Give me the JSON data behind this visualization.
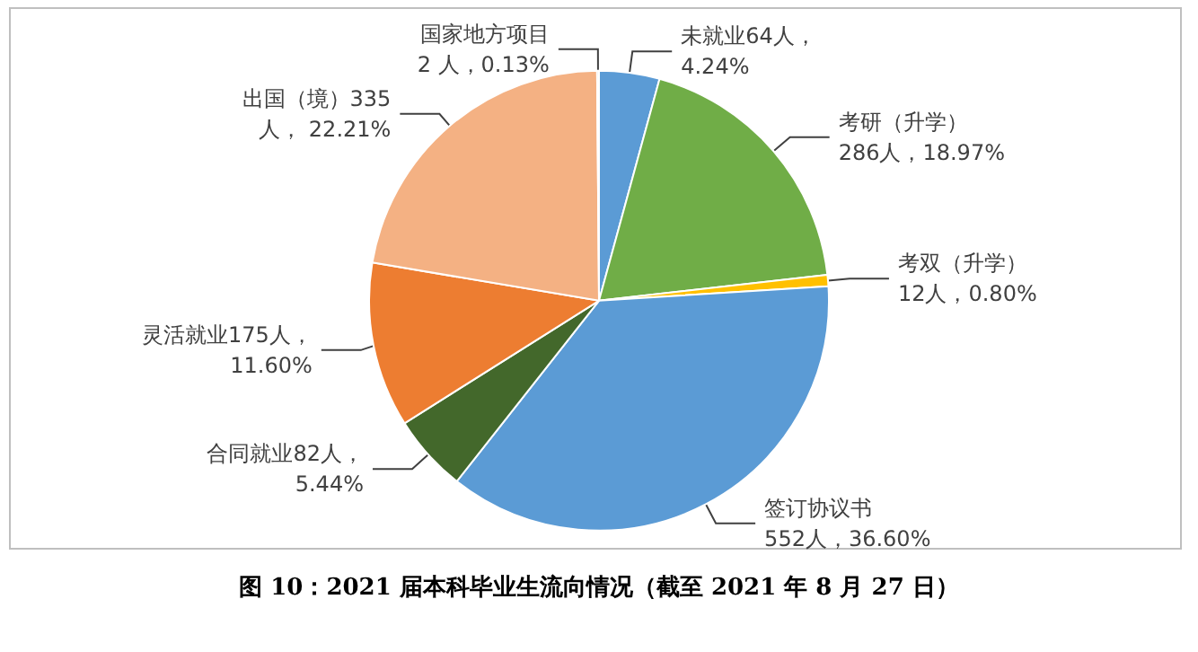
{
  "chart_data": {
    "type": "pie",
    "title": "图 10：2021 届本科毕业生流向情况（截至 2021 年 8 月 27 日）",
    "categories": [
      "未就业",
      "考研（升学）",
      "考双（升学）",
      "签订协议书",
      "合同就业",
      "灵活就业",
      "出国（境）",
      "国家地方项目"
    ],
    "values": [
      64,
      286,
      12,
      552,
      82,
      175,
      335,
      2
    ],
    "value_labels": [
      "64人，\n4.24%",
      "\n286人，18.97%",
      "\n12人，0.80%",
      "\n552人，36.60%",
      "82人，\n5.44%",
      "175人，\n11.60%",
      "335\n人， 22.21%",
      "\n2 人，0.13%"
    ],
    "colors": [
      "#5b9bd5",
      "#70ad47",
      "#ffc000",
      "#5b9bd5",
      "#43682b",
      "#ed7d31",
      "#f4b183",
      "#a5a5a5"
    ],
    "legend": false
  }
}
